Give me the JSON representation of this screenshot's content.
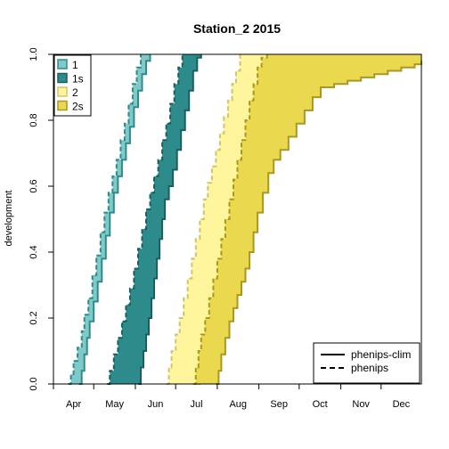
{
  "chart_data": {
    "type": "area",
    "title": "Station_2 2015",
    "xlabel": "",
    "ylabel": "development",
    "xlim": [
      91,
      365
    ],
    "ylim": [
      0,
      1
    ],
    "x_ticks": [
      {
        "label": "Apr",
        "doy": 91
      },
      {
        "label": "May",
        "doy": 121
      },
      {
        "label": "Jun",
        "doy": 152
      },
      {
        "label": "Jul",
        "doy": 182
      },
      {
        "label": "Aug",
        "doy": 213
      },
      {
        "label": "Sep",
        "doy": 244
      },
      {
        "label": "Oct",
        "doy": 274
      },
      {
        "label": "Nov",
        "doy": 305
      },
      {
        "label": "Dec",
        "doy": 335
      }
    ],
    "y_ticks": [
      "0.0",
      "0.2",
      "0.4",
      "0.6",
      "0.8",
      "1.0"
    ],
    "grid": false,
    "legend_fill": {
      "placement": "top-left",
      "entries": [
        {
          "label": "1",
          "fill": "#7fc9c9",
          "stroke": "#2e8b8b"
        },
        {
          "label": "1s",
          "fill": "#2e8b8b",
          "stroke": "#1a5f5f"
        },
        {
          "label": "2",
          "fill": "#fff59d",
          "stroke": "#d4c46a"
        },
        {
          "label": "2s",
          "fill": "#ead84e",
          "stroke": "#a89820"
        }
      ]
    },
    "legend_lines": {
      "placement": "bottom-right",
      "entries": [
        {
          "label": "phenips-clim",
          "style": "solid"
        },
        {
          "label": "phenips",
          "style": "dashed"
        }
      ]
    },
    "series": [
      {
        "name": "1",
        "fill": "#7fc9c9",
        "stroke": "#2e8b8b",
        "upper": [
          [
            102,
            0
          ],
          [
            104,
            0.03
          ],
          [
            106,
            0.07
          ],
          [
            109,
            0.11
          ],
          [
            112,
            0.16
          ],
          [
            114,
            0.21
          ],
          [
            117,
            0.26
          ],
          [
            120,
            0.33
          ],
          [
            123,
            0.39
          ],
          [
            126,
            0.46
          ],
          [
            129,
            0.52
          ],
          [
            132,
            0.58
          ],
          [
            135,
            0.63
          ],
          [
            138,
            0.68
          ],
          [
            141,
            0.74
          ],
          [
            144,
            0.79
          ],
          [
            147,
            0.85
          ],
          [
            150,
            0.91
          ],
          [
            153,
            0.96
          ],
          [
            156,
            1.0
          ]
        ],
        "lower": [
          [
            110,
            0
          ],
          [
            112,
            0.04
          ],
          [
            114,
            0.09
          ],
          [
            116,
            0.14
          ],
          [
            118,
            0.19
          ],
          [
            121,
            0.25
          ],
          [
            124,
            0.31
          ],
          [
            127,
            0.38
          ],
          [
            130,
            0.45
          ],
          [
            133,
            0.52
          ],
          [
            136,
            0.58
          ],
          [
            139,
            0.63
          ],
          [
            142,
            0.68
          ],
          [
            145,
            0.73
          ],
          [
            148,
            0.78
          ],
          [
            151,
            0.84
          ],
          [
            154,
            0.89
          ],
          [
            157,
            0.94
          ],
          [
            160,
            0.98
          ],
          [
            163,
            1.0
          ]
        ]
      },
      {
        "name": "1s",
        "fill": "#2e8b8b",
        "stroke": "#1a5f5f",
        "upper": [
          [
            131,
            0
          ],
          [
            133,
            0.04
          ],
          [
            136,
            0.09
          ],
          [
            139,
            0.14
          ],
          [
            142,
            0.19
          ],
          [
            145,
            0.24
          ],
          [
            148,
            0.29
          ],
          [
            151,
            0.35
          ],
          [
            154,
            0.41
          ],
          [
            157,
            0.47
          ],
          [
            160,
            0.53
          ],
          [
            163,
            0.58
          ],
          [
            166,
            0.63
          ],
          [
            169,
            0.68
          ],
          [
            172,
            0.74
          ],
          [
            175,
            0.79
          ],
          [
            178,
            0.85
          ],
          [
            181,
            0.91
          ],
          [
            184,
            0.96
          ],
          [
            187,
            1.0
          ]
        ],
        "lower": [
          [
            154,
            0
          ],
          [
            156,
            0.05
          ],
          [
            158,
            0.1
          ],
          [
            160,
            0.15
          ],
          [
            162,
            0.2
          ],
          [
            164,
            0.26
          ],
          [
            166,
            0.32
          ],
          [
            168,
            0.38
          ],
          [
            170,
            0.44
          ],
          [
            172,
            0.5
          ],
          [
            174,
            0.56
          ],
          [
            177,
            0.6
          ],
          [
            180,
            0.65
          ],
          [
            183,
            0.71
          ],
          [
            186,
            0.77
          ],
          [
            189,
            0.83
          ],
          [
            192,
            0.89
          ],
          [
            195,
            0.95
          ],
          [
            198,
            0.99
          ],
          [
            201,
            1.0
          ]
        ]
      },
      {
        "name": "2",
        "fill": "#fff59d",
        "stroke": "#d4c46a",
        "upper": [
          [
            175,
            0
          ],
          [
            177,
            0.05
          ],
          [
            179,
            0.1
          ],
          [
            182,
            0.15
          ],
          [
            185,
            0.2
          ],
          [
            188,
            0.26
          ],
          [
            191,
            0.32
          ],
          [
            194,
            0.38
          ],
          [
            197,
            0.44
          ],
          [
            200,
            0.5
          ],
          [
            203,
            0.56
          ],
          [
            206,
            0.61
          ],
          [
            209,
            0.66
          ],
          [
            212,
            0.71
          ],
          [
            215,
            0.76
          ],
          [
            218,
            0.81
          ],
          [
            221,
            0.86
          ],
          [
            224,
            0.91
          ],
          [
            227,
            0.95
          ],
          [
            230,
            1.0
          ]
        ],
        "lower": [
          [
            198,
            0
          ],
          [
            200,
            0.04
          ],
          [
            202,
            0.08
          ],
          [
            204,
            0.12
          ],
          [
            206,
            0.16
          ],
          [
            209,
            0.21
          ],
          [
            212,
            0.26
          ],
          [
            215,
            0.32
          ],
          [
            218,
            0.38
          ],
          [
            221,
            0.44
          ],
          [
            224,
            0.5
          ],
          [
            227,
            0.56
          ],
          [
            230,
            0.62
          ],
          [
            233,
            0.68
          ],
          [
            236,
            0.74
          ],
          [
            239,
            0.79
          ],
          [
            242,
            0.84
          ],
          [
            245,
            0.89
          ],
          [
            248,
            0.94
          ],
          [
            252,
            0.98
          ],
          [
            256,
            1.0
          ]
        ]
      },
      {
        "name": "2s",
        "fill": "#ead84e",
        "stroke": "#a89820",
        "upper": [
          [
            195,
            0
          ],
          [
            197,
            0.05
          ],
          [
            199,
            0.1
          ],
          [
            201,
            0.15
          ],
          [
            204,
            0.2
          ],
          [
            207,
            0.26
          ],
          [
            210,
            0.32
          ],
          [
            213,
            0.38
          ],
          [
            216,
            0.44
          ],
          [
            219,
            0.5
          ],
          [
            222,
            0.56
          ],
          [
            225,
            0.62
          ],
          [
            228,
            0.68
          ],
          [
            231,
            0.74
          ],
          [
            234,
            0.8
          ],
          [
            237,
            0.86
          ],
          [
            240,
            0.91
          ],
          [
            243,
            0.96
          ],
          [
            246,
            0.99
          ],
          [
            250,
            1.0
          ]
        ],
        "lower": [
          [
            212,
            0
          ],
          [
            214,
            0.04
          ],
          [
            216,
            0.09
          ],
          [
            219,
            0.14
          ],
          [
            222,
            0.19
          ],
          [
            225,
            0.23
          ],
          [
            228,
            0.27
          ],
          [
            231,
            0.31
          ],
          [
            234,
            0.35
          ],
          [
            237,
            0.4
          ],
          [
            240,
            0.46
          ],
          [
            243,
            0.52
          ],
          [
            247,
            0.58
          ],
          [
            251,
            0.64
          ],
          [
            255,
            0.68
          ],
          [
            260,
            0.71
          ],
          [
            266,
            0.75
          ],
          [
            272,
            0.79
          ],
          [
            278,
            0.83
          ],
          [
            284,
            0.87
          ],
          [
            290,
            0.9
          ],
          [
            300,
            0.91
          ],
          [
            310,
            0.92
          ],
          [
            320,
            0.93
          ],
          [
            330,
            0.94
          ],
          [
            340,
            0.95
          ],
          [
            350,
            0.96
          ],
          [
            360,
            0.97
          ],
          [
            365,
            0.98
          ]
        ]
      }
    ]
  }
}
